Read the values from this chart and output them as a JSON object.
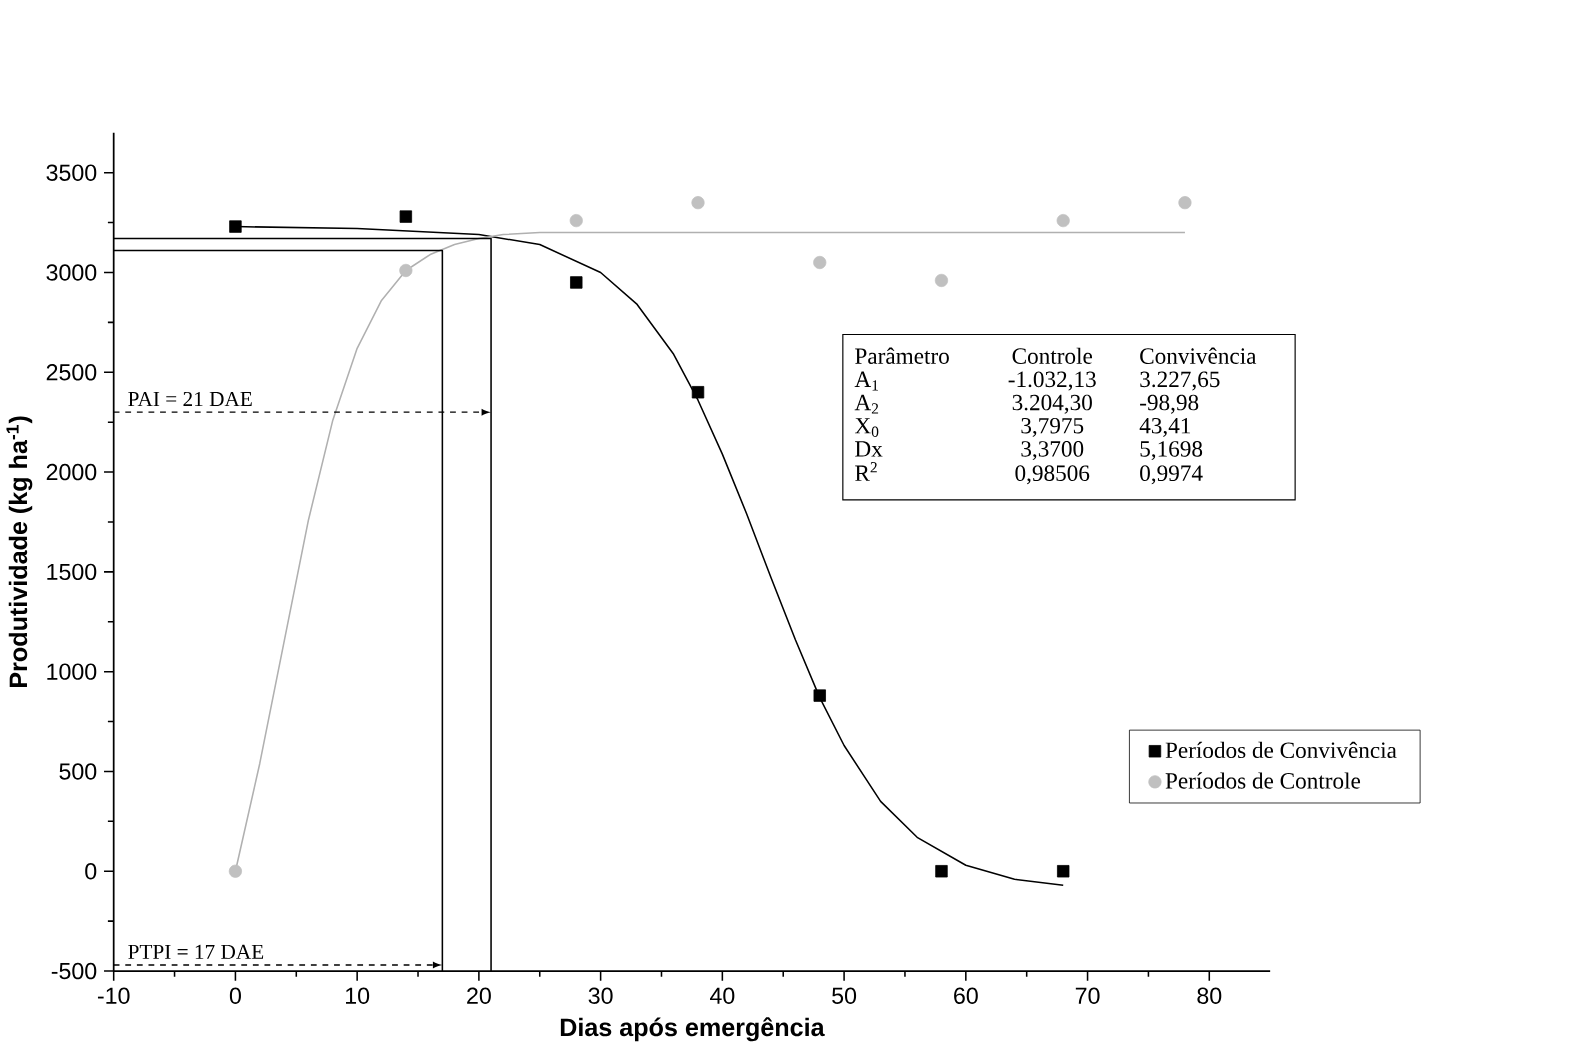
{
  "chart_data": {
    "type": "scatter",
    "xlabel": "Dias após emergência",
    "ylabel": "Produtividade (kg ha$^{-1}$)",
    "xlim": [
      -10,
      85
    ],
    "ylim": [
      -500,
      3700
    ],
    "xticks": [
      -10,
      0,
      10,
      20,
      30,
      40,
      50,
      60,
      70,
      80
    ],
    "yticks": [
      -500,
      0,
      500,
      1000,
      1500,
      2000,
      2500,
      3000,
      3500
    ],
    "legend": "right",
    "series": [
      {
        "name": "Períodos de Convivência",
        "marker": "square",
        "color": "#000000",
        "x": [
          0,
          14,
          28,
          38,
          48,
          58,
          68
        ],
        "values": [
          3230,
          3280,
          2950,
          2400,
          880,
          0,
          0
        ]
      },
      {
        "name": "Períodos de Controle",
        "marker": "circle",
        "color": "#c0c0c0",
        "x": [
          0,
          14,
          28,
          38,
          48,
          58,
          68,
          78
        ],
        "values": [
          0,
          3010,
          3260,
          3350,
          3050,
          2960,
          3260,
          3350
        ]
      },
      {
        "type": "line",
        "marker": "none",
        "color": "#000000",
        "x": [
          0,
          10,
          20,
          25,
          30,
          33,
          36,
          38,
          40,
          42,
          44,
          46,
          48,
          50,
          53,
          56,
          60,
          64,
          68
        ],
        "values": [
          3230,
          3220,
          3190,
          3140,
          3000,
          2840,
          2590,
          2360,
          2090,
          1790,
          1470,
          1160,
          870,
          630,
          350,
          170,
          30,
          -40,
          -70
        ]
      },
      {
        "type": "line",
        "marker": "none",
        "color": "#b0b0b0",
        "x": [
          0,
          2,
          4,
          6,
          8,
          10,
          12,
          14,
          16,
          18,
          20,
          22,
          25,
          30,
          40,
          50,
          60,
          70,
          78
        ],
        "values": [
          0,
          540,
          1150,
          1760,
          2260,
          2620,
          2860,
          3010,
          3090,
          3140,
          3170,
          3190,
          3200,
          3200,
          3200,
          3200,
          3200,
          3200,
          3200
        ]
      },
      {
        "type": "line",
        "marker": "none",
        "color": "#000000",
        "x": [
          -10,
          17,
          17
        ],
        "values": [
          3110,
          3110,
          -500
        ]
      },
      {
        "type": "line",
        "marker": "none",
        "color": "#000000",
        "x": [
          -10,
          21,
          21
        ],
        "values": [
          3170,
          3170,
          -500
        ]
      }
    ],
    "annotations": [
      {
        "text": "PAI = 21 DAE",
        "x": 21,
        "y": 2300
      },
      {
        "text": "PTPI = 17 DAE",
        "x": 17,
        "y": -470
      },
      "Parâmetro",
      "Controle",
      "Convivência",
      "A$_{1}$",
      "-1.032,13",
      "3.227,65",
      "A$_{2}$",
      "3.204,30",
      "-98,98",
      "X$_{0}$",
      "3,7975",
      "43,41",
      "Dx",
      "3,3700",
      "5,1698",
      "R$^{2}$",
      "0,98506",
      "0,9974"
    ]
  }
}
